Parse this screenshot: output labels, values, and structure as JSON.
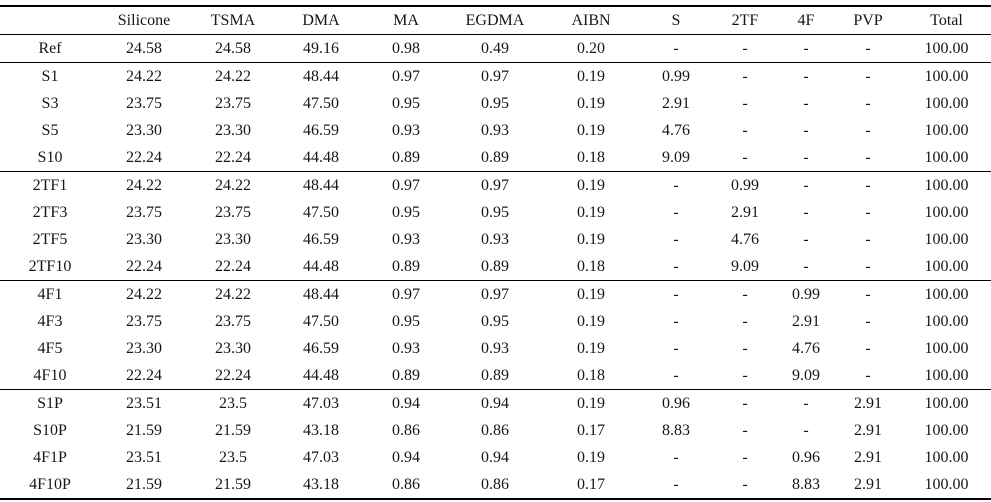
{
  "page": {
    "background": "#ffffff",
    "text_color": "#161616",
    "rule_color": "#000000"
  },
  "table": {
    "columns": [
      "",
      "Silicone",
      "TSMA",
      "DMA",
      "MA",
      "EGDMA",
      "AIBN",
      "S",
      "2TF",
      "4F",
      "PVP",
      "Total"
    ],
    "groups": [
      {
        "name": "ref",
        "rows": [
          [
            "Ref",
            "24.58",
            "24.58",
            "49.16",
            "0.98",
            "0.49",
            "0.20",
            "-",
            "-",
            "-",
            "-",
            "100.00"
          ]
        ]
      },
      {
        "name": "s-series",
        "rows": [
          [
            "S1",
            "24.22",
            "24.22",
            "48.44",
            "0.97",
            "0.97",
            "0.19",
            "0.99",
            "-",
            "-",
            "-",
            "100.00"
          ],
          [
            "S3",
            "23.75",
            "23.75",
            "47.50",
            "0.95",
            "0.95",
            "0.19",
            "2.91",
            "-",
            "-",
            "-",
            "100.00"
          ],
          [
            "S5",
            "23.30",
            "23.30",
            "46.59",
            "0.93",
            "0.93",
            "0.19",
            "4.76",
            "-",
            "-",
            "-",
            "100.00"
          ],
          [
            "S10",
            "22.24",
            "22.24",
            "44.48",
            "0.89",
            "0.89",
            "0.18",
            "9.09",
            "-",
            "-",
            "-",
            "100.00"
          ]
        ]
      },
      {
        "name": "2tf-series",
        "rows": [
          [
            "2TF1",
            "24.22",
            "24.22",
            "48.44",
            "0.97",
            "0.97",
            "0.19",
            "-",
            "0.99",
            "-",
            "-",
            "100.00"
          ],
          [
            "2TF3",
            "23.75",
            "23.75",
            "47.50",
            "0.95",
            "0.95",
            "0.19",
            "-",
            "2.91",
            "-",
            "-",
            "100.00"
          ],
          [
            "2TF5",
            "23.30",
            "23.30",
            "46.59",
            "0.93",
            "0.93",
            "0.19",
            "-",
            "4.76",
            "-",
            "-",
            "100.00"
          ],
          [
            "2TF10",
            "22.24",
            "22.24",
            "44.48",
            "0.89",
            "0.89",
            "0.18",
            "-",
            "9.09",
            "-",
            "-",
            "100.00"
          ]
        ]
      },
      {
        "name": "4f-series",
        "rows": [
          [
            "4F1",
            "24.22",
            "24.22",
            "48.44",
            "0.97",
            "0.97",
            "0.19",
            "-",
            "-",
            "0.99",
            "-",
            "100.00"
          ],
          [
            "4F3",
            "23.75",
            "23.75",
            "47.50",
            "0.95",
            "0.95",
            "0.19",
            "-",
            "-",
            "2.91",
            "-",
            "100.00"
          ],
          [
            "4F5",
            "23.30",
            "23.30",
            "46.59",
            "0.93",
            "0.93",
            "0.19",
            "-",
            "-",
            "4.76",
            "-",
            "100.00"
          ],
          [
            "4F10",
            "22.24",
            "22.24",
            "44.48",
            "0.89",
            "0.89",
            "0.18",
            "-",
            "-",
            "9.09",
            "-",
            "100.00"
          ]
        ]
      },
      {
        "name": "pvp-series",
        "rows": [
          [
            "S1P",
            "23.51",
            "23.5",
            "47.03",
            "0.94",
            "0.94",
            "0.19",
            "0.96",
            "-",
            "-",
            "2.91",
            "100.00"
          ],
          [
            "S10P",
            "21.59",
            "21.59",
            "43.18",
            "0.86",
            "0.86",
            "0.17",
            "8.83",
            "-",
            "-",
            "2.91",
            "100.00"
          ],
          [
            "4F1P",
            "23.51",
            "23.5",
            "47.03",
            "0.94",
            "0.94",
            "0.19",
            "-",
            "-",
            "0.96",
            "2.91",
            "100.00"
          ],
          [
            "4F10P",
            "21.59",
            "21.59",
            "43.18",
            "0.86",
            "0.86",
            "0.17",
            "-",
            "-",
            "8.83",
            "2.91",
            "100.00"
          ]
        ]
      }
    ]
  }
}
